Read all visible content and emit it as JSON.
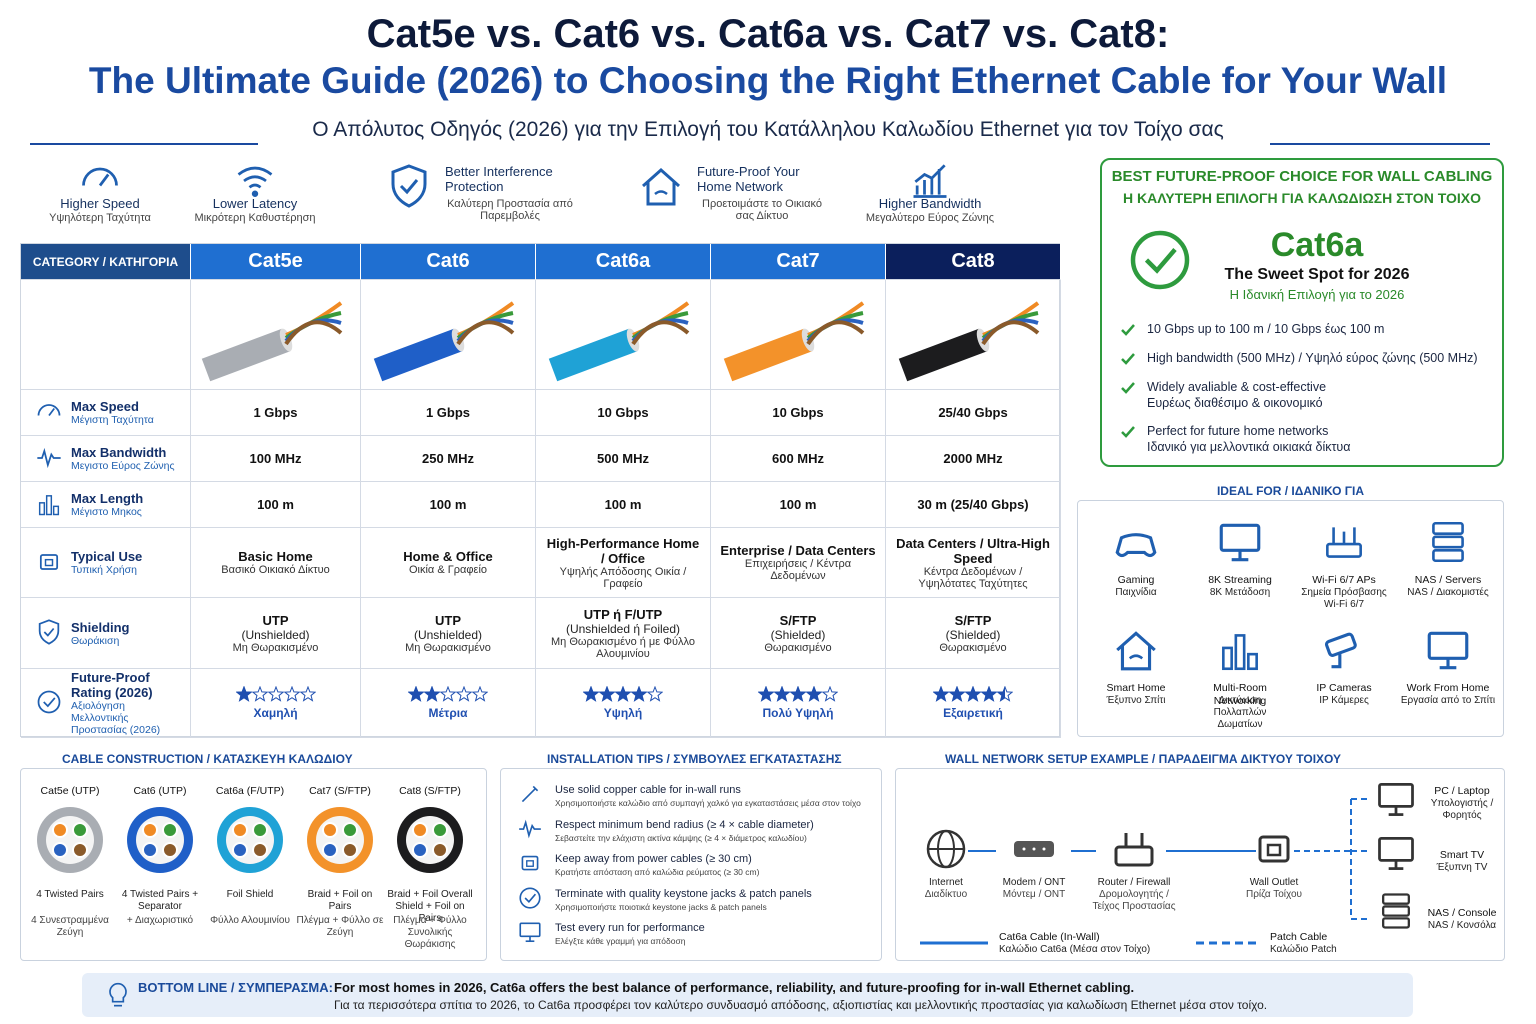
{
  "header": {
    "title": "Cat5e vs. Cat6 vs. Cat6a vs. Cat7 vs. Cat8:",
    "title2": "The Ultimate Guide (2026) to Choosing the Right Ethernet Cable for Your Wall",
    "subtitle": "Ο Απόλυτος Οδηγός (2026) για την Επιλογή του Κατάλληλου Καλωδίου Ethernet για τον Τοίχο σας"
  },
  "features": [
    {
      "title": "Higher Speed",
      "sub": "Υψηλότερη Ταχύτητα"
    },
    {
      "title": "Lower Latency",
      "sub": "Μικρότερη Καθυστέρηση"
    },
    {
      "title": "Better Interference Protection",
      "sub": "Καλύτερη Προστασία από Παρεμβολές"
    },
    {
      "title": "Future-Proof Your Home Network",
      "sub": "Προετοιμάστε το Οικιακό σας Δίκτυο"
    },
    {
      "title": "Higher Bandwidth",
      "sub": "Μεγαλύτερο Εύρος Ζώνης"
    }
  ],
  "table": {
    "corner": "CATEGORY / ΚΑΤΗΓΟΡΙΑ",
    "columns": [
      {
        "name": "Cat5e",
        "cable_color": "#a9adb3"
      },
      {
        "name": "Cat6",
        "cable_color": "#1f5fc8"
      },
      {
        "name": "Cat6a",
        "cable_color": "#1fa2d6"
      },
      {
        "name": "Cat7",
        "cable_color": "#f3922a"
      },
      {
        "name": "Cat8",
        "cable_color": "#1c1c1e"
      }
    ],
    "rows": [
      {
        "label": "Max Speed",
        "sublabel": "Μέγιστη Ταχύτητα",
        "cells": [
          {
            "main": "1 Gbps"
          },
          {
            "main": "1 Gbps"
          },
          {
            "main": "10 Gbps"
          },
          {
            "main": "10 Gbps"
          },
          {
            "main": "25/40 Gbps"
          }
        ]
      },
      {
        "label": "Max Bandwidth",
        "sublabel": "Μεγιστο Εύρος Ζώνης",
        "cells": [
          {
            "main": "100 MHz"
          },
          {
            "main": "250 MHz"
          },
          {
            "main": "500 MHz"
          },
          {
            "main": "600 MHz"
          },
          {
            "main": "2000 MHz"
          }
        ]
      },
      {
        "label": "Max Length",
        "sublabel": "Μέγιστο Μηκος",
        "cells": [
          {
            "main": "100 m"
          },
          {
            "main": "100 m"
          },
          {
            "main": "100 m"
          },
          {
            "main": "100 m"
          },
          {
            "main": "30 m (25/40 Gbps)"
          }
        ]
      },
      {
        "label": "Typical Use",
        "sublabel": "Τυπική Χρήση",
        "cells": [
          {
            "main": "Basic Home",
            "sub": "Βασικό Οικιακό Δίκτυο"
          },
          {
            "main": "Home & Office",
            "sub": "Οικία & Γραφείο"
          },
          {
            "main": "High-Performance Home / Office",
            "sub": "Υψηλής Απόδοσης Οικία / Γραφείο"
          },
          {
            "main": "Enterprise / Data Centers",
            "sub": "Επιχειρήσεις / Κέντρα Δεδομένων"
          },
          {
            "main": "Data Centers / Ultra-High Speed",
            "sub": "Κέντρα Δεδομένων / Υψηλότατες Ταχύτητες"
          }
        ]
      },
      {
        "label": "Shielding",
        "sublabel": "Θωράκιση",
        "cells": [
          {
            "main": "UTP",
            "detail": "(Unshielded)",
            "sub": "Μη Θωρακισμένο"
          },
          {
            "main": "UTP",
            "detail": "(Unshielded)",
            "sub": "Μη Θωρακισμένο"
          },
          {
            "main": "UTP ή F/UTP",
            "detail": "(Unshielded ή Foiled)",
            "sub": "Μη Θωρακισμένο ή με Φύλλο Αλουμινίου"
          },
          {
            "main": "S/FTP",
            "detail": "(Shielded)",
            "sub": "Θωρακισμένο"
          },
          {
            "main": "S/FTP",
            "detail": "(Shielded)",
            "sub": "Θωρακισμένο"
          }
        ]
      },
      {
        "label": "Future-Proof Rating (2026)",
        "sublabel": "Αξιολόγηση Μελλοντικής Προστασίας (2026)",
        "stars_max": 5,
        "cells": [
          {
            "stars": 1,
            "sub": "Χαμηλή"
          },
          {
            "stars": 2,
            "sub": "Μέτρια"
          },
          {
            "stars": 4,
            "sub": "Υψηλή"
          },
          {
            "stars": 4,
            "sub": "Πολύ Υψηλή"
          },
          {
            "stars": 4.5,
            "sub": "Εξαιρετική"
          }
        ]
      }
    ]
  },
  "best": {
    "title": "BEST FUTURE-PROOF CHOICE FOR WALL CABLING",
    "title_gr": "Η ΚΑΛΥΤΕΡΗ ΕΠΙΛΟΓΗ ΓΙΑ ΚΑΛΩΔΙΩΣΗ ΣΤΟΝ ΤΟΙΧΟ",
    "name": "Cat6a",
    "tagline": "The Sweet Spot for 2026",
    "tagline_gr": "Η Ιδανική Επιλογή για το 2026",
    "points": [
      {
        "en": "10 Gbps up to 100 m / 10 Gbps έως 100 m"
      },
      {
        "en": "High bandwidth (500 MHz) / Υψηλό εύρος ζώνης (500 MHz)"
      },
      {
        "en": "Widely avaliable & cost-effective",
        "gr": "Ευρέως διαθέσιμο & οικονομικό"
      },
      {
        "en": "Perfect for future home networks",
        "gr": "Ιδανικό για μελλοντικά οικιακά δίκτυα"
      }
    ]
  },
  "ideal": {
    "title": "IDEAL FOR / ΙΔΑΝΙΚΟ ΓΙΑ",
    "items": [
      {
        "label": "Gaming",
        "sub": "Παιχνίδια"
      },
      {
        "label": "8K Streaming",
        "sub": "8K Μετάδοση"
      },
      {
        "label": "Wi-Fi 6/7 APs",
        "sub": "Σημεία Πρόσβασης Wi-Fi 6/7"
      },
      {
        "label": "NAS / Servers",
        "sub": "NAS / Διακομιστές"
      },
      {
        "label": "Smart Home",
        "sub": "Έξυπνο Σπίτι"
      },
      {
        "label": "Multi-Room Networking",
        "sub": "Δικτύωση Πολλαπλών Δωματίων"
      },
      {
        "label": "IP Cameras",
        "sub": "IP Κάμερες"
      },
      {
        "label": "Work From Home",
        "sub": "Εργασία από το Σπίτι"
      }
    ]
  },
  "construction": {
    "title": "CABLE CONSTRUCTION / ΚΑΤΑΣΚΕΥΗ ΚΑΛΩΔΙΟΥ",
    "items": [
      {
        "name": "Cat5e (UTP)",
        "en": "4 Twisted Pairs",
        "gr": "4 Συνεστραμμένα Ζεύγη"
      },
      {
        "name": "Cat6 (UTP)",
        "en": "4 Twisted Pairs + Separator",
        "gr": "+ Διαχωριστικό"
      },
      {
        "name": "Cat6a (F/UTP)",
        "en": "Foil Shield",
        "gr": "Φύλλο Αλουμινίου"
      },
      {
        "name": "Cat7 (S/FTP)",
        "en": "Braid + Foil on Pairs",
        "gr": "Πλέγμα + Φύλλο σε Ζεύγη"
      },
      {
        "name": "Cat8 (S/FTP)",
        "en": "Braid + Foil Overall Shield + Foil on Pairs",
        "gr": "Πλέγμα + Φύλλο Συνολικής Θωράκισης"
      }
    ]
  },
  "tips": {
    "title": "INSTALLATION TIPS / ΣΥΜΒΟΥΛΕΣ ΕΓΚΑΤΑΣΤΑΣΗΣ",
    "items": [
      {
        "en": "Use solid copper cable for in-wall runs",
        "gr": "Χρησιμοποιήστε καλώδιο από συμπαγή χαλκό για εγκαταστάσεις μέσα στον τοίχο"
      },
      {
        "en": "Respect minimum bend radius (≥ 4 × cable diameter)",
        "gr": "Σεβαστείτε την ελάχιστη ακτίνα κάμψης (≥ 4 × διάμετρος καλωδίου)"
      },
      {
        "en": "Keep away from power cables (≥ 30 cm)",
        "gr": "Κρατήστε απόσταση από καλώδια ρεύματος (≥ 30 cm)"
      },
      {
        "en": "Terminate with quality keystone jacks & patch panels",
        "gr": "Χρησιμοποιήστε ποιοτικά keystone jacks & patch panels"
      },
      {
        "en": "Test every run for performance",
        "gr": "Ελέγξτε κάθε γραμμή για απόδοση"
      }
    ]
  },
  "wall": {
    "title": "WALL NETWORK SETUP EXAMPLE / ΠΑΡΑΔΕΙΓΜΑ ΔΙΚΤΥΟΥ ΤΟΙΧΟΥ",
    "nodes": [
      {
        "label": "Internet",
        "sub": "Διαδίκτυο"
      },
      {
        "label": "Modem / ONT",
        "sub": "Μόντεμ / ONT"
      },
      {
        "label": "Router / Firewall",
        "sub": "Δρομολογητής / Τείχος Προστασίας"
      },
      {
        "label": "Wall Outlet",
        "sub": "Πρίζα Τοίχου"
      }
    ],
    "devices": [
      {
        "label": "PC / Laptop",
        "sub": "Υπολογιστής / Φορητός"
      },
      {
        "label": "Smart TV",
        "sub": "Έξυπνη TV"
      },
      {
        "label": "NAS / Console",
        "sub": "NAS / Κονσόλα"
      }
    ],
    "legend": [
      {
        "label": "Cat6a Cable (In-Wall)",
        "sub": "Καλώδιο Cat6a (Μέσα στον Τοίχο)"
      },
      {
        "label": "Patch Cable",
        "sub": "Καλώδιο Patch"
      }
    ]
  },
  "bottom": {
    "label": "BOTTOM LINE / ΣΥΜΠΕΡΑΣΜΑ:",
    "text": "For most homes in 2026, Cat6a offers the best balance of performance, reliability, and future-proofing for in-wall Ethernet cabling.",
    "text_gr": "Για τα περισσότερα σπίτια το 2026, το Cat6a προσφέρει τον καλύτερο συνδυασμό απόδοσης, αξιοπιστίας και μελλοντικής προστασίας για καλωδίωση Ethernet μέσα στον τοίχο."
  }
}
